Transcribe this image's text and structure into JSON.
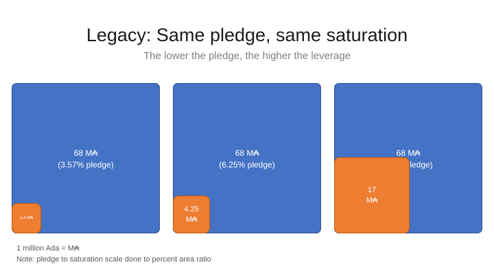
{
  "title": "Legacy: Same pledge, same saturation",
  "subtitle": "The lower the pledge, the higher the leverage",
  "pools": [
    {
      "saturation_label": "68 M₳",
      "pledge_percent_label": "(3.57% pledge)",
      "pledge_label": "2.4 M₳",
      "pledge_value": 2.4,
      "saturation_value": 68
    },
    {
      "saturation_label": "68 M₳",
      "pledge_percent_label": "(6.25% pledge)",
      "pledge_label_line1": "4.25",
      "pledge_label_line2": "M₳",
      "pledge_value": 4.25,
      "saturation_value": 68
    },
    {
      "saturation_label": "68 M₳",
      "pledge_percent_label": "(25% pledge)",
      "pledge_label_line1": "17",
      "pledge_label_line2": "M₳",
      "pledge_value": 17,
      "saturation_value": 68
    }
  ],
  "footnotes": {
    "unit": "1 million Ada = M₳",
    "note": "Note: pledge to saturation scale done to percent area ratio"
  },
  "colors": {
    "saturation": "#4472c4",
    "pledge": "#ed7d31"
  }
}
